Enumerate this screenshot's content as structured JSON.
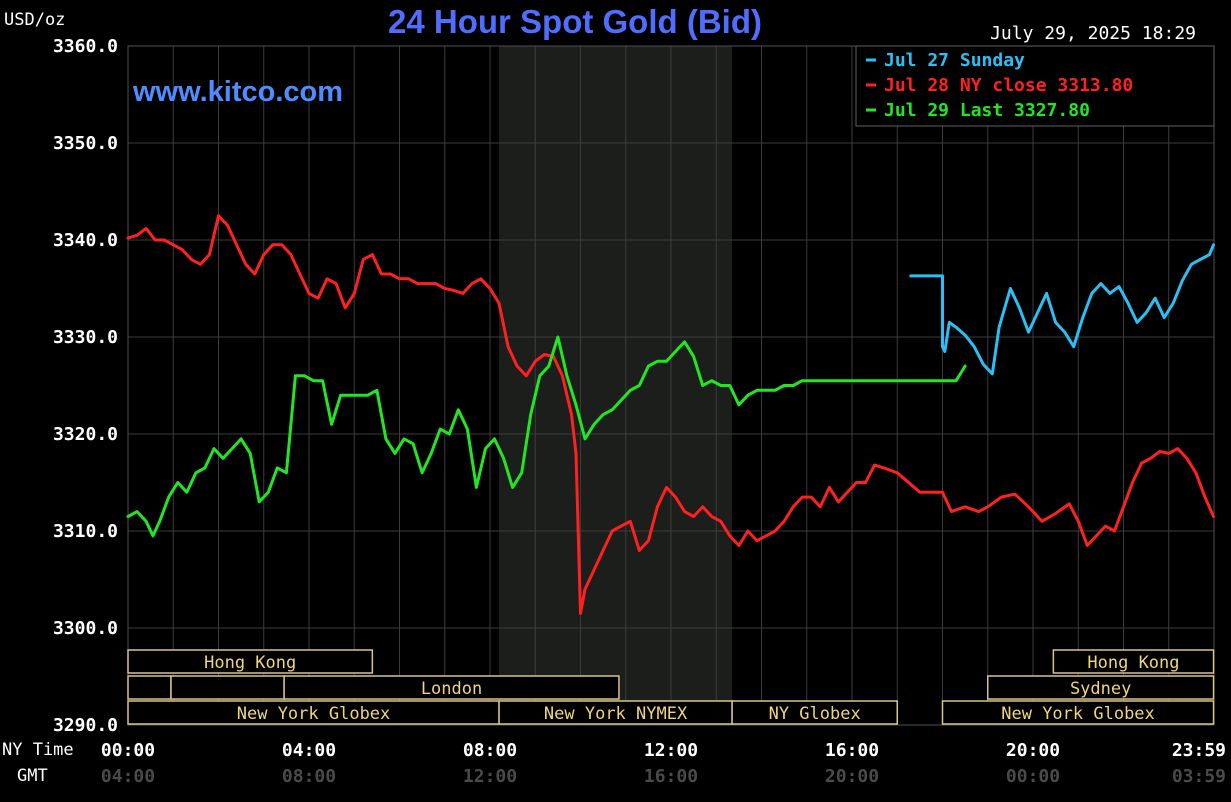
{
  "chart_data": {
    "type": "line",
    "title": "24 Hour Spot Gold (Bid)",
    "website": "www.kitco.com",
    "timestamp": "July 29, 2025 18:29",
    "unit_label": "USD/oz",
    "ylim": [
      3290,
      3360
    ],
    "yticks": [
      "3360.0",
      "3350.0",
      "3340.0",
      "3330.0",
      "3320.0",
      "3310.0",
      "3300.0",
      "3290.0"
    ],
    "xlim": [
      0,
      24
    ],
    "xticks_ny": [
      "00:00",
      "04:00",
      "08:00",
      "12:00",
      "16:00",
      "20:00",
      "23:59"
    ],
    "xticks_gmt": [
      "04:00",
      "08:00",
      "12:00",
      "16:00",
      "20:00",
      "00:00",
      "03:59"
    ],
    "xrow_labels": {
      "ny": "NY Time",
      "gmt": "GMT"
    },
    "grid": true,
    "legend": [
      {
        "label": "Jul 27 Sunday",
        "color": "#29c1f5"
      },
      {
        "label": "Jul 28 NY close 3313.80",
        "color": "#ff2020"
      },
      {
        "label": "Jul 29 Last 3327.80",
        "color": "#22e622"
      }
    ],
    "shaded_region_hours": [
      8.2,
      13.35
    ],
    "market_sessions": [
      {
        "label": "Hong Kong",
        "row": 0,
        "start": 0,
        "end": 5.4
      },
      {
        "label": "Hong Kong",
        "row": 0,
        "start": 20.45,
        "end": 23.99
      },
      {
        "label": "",
        "row": 1,
        "start": 0,
        "end": 0.95
      },
      {
        "label": "",
        "row": 1,
        "start": 0.95,
        "end": 3.45
      },
      {
        "label": "London",
        "row": 1,
        "start": 3.45,
        "end": 10.85
      },
      {
        "label": "Sydney",
        "row": 1,
        "start": 19.0,
        "end": 23.99
      },
      {
        "label": "New York Globex",
        "row": 2,
        "start": 0,
        "end": 8.2
      },
      {
        "label": "New York NYMEX",
        "row": 2,
        "start": 8.2,
        "end": 13.35
      },
      {
        "label": "NY Globex",
        "row": 2,
        "start": 13.35,
        "end": 17.0
      },
      {
        "label": "New York Globex",
        "row": 2,
        "start": 18.0,
        "end": 23.99
      }
    ],
    "series": [
      {
        "name": "Jul 27 Sunday",
        "color": "#29c1f5",
        "x": [
          17.3,
          18.0,
          18.0,
          18.05,
          18.15,
          18.3,
          18.5,
          18.7,
          18.9,
          19.1,
          19.25,
          19.5,
          19.7,
          19.9,
          20.1,
          20.3,
          20.5,
          20.7,
          20.9,
          21.1,
          21.3,
          21.5,
          21.7,
          21.9,
          22.1,
          22.3,
          22.5,
          22.7,
          22.9,
          23.1,
          23.3,
          23.5,
          23.7,
          23.9,
          23.99
        ],
        "y": [
          3336.3,
          3336.3,
          3329.0,
          3328.5,
          3331.5,
          3331.0,
          3330.2,
          3329.0,
          3327.2,
          3326.2,
          3331.0,
          3335.0,
          3333.0,
          3330.5,
          3332.5,
          3334.5,
          3331.5,
          3330.5,
          3329.0,
          3332.0,
          3334.5,
          3335.5,
          3334.5,
          3335.2,
          3333.5,
          3331.5,
          3332.5,
          3334.0,
          3332.0,
          3333.5,
          3335.8,
          3337.5,
          3338.0,
          3338.5,
          3339.5
        ]
      },
      {
        "name": "Jul 28 NY close 3313.80",
        "color": "#ff2020",
        "x": [
          0.0,
          0.2,
          0.4,
          0.6,
          0.8,
          1.0,
          1.2,
          1.4,
          1.6,
          1.8,
          2.0,
          2.2,
          2.4,
          2.6,
          2.8,
          3.0,
          3.2,
          3.4,
          3.6,
          3.8,
          4.0,
          4.2,
          4.4,
          4.6,
          4.8,
          5.0,
          5.2,
          5.4,
          5.6,
          5.8,
          6.0,
          6.2,
          6.4,
          6.6,
          6.8,
          7.0,
          7.2,
          7.4,
          7.6,
          7.8,
          8.0,
          8.2,
          8.4,
          8.6,
          8.8,
          9.0,
          9.2,
          9.4,
          9.6,
          9.8,
          9.9,
          10.0,
          10.1,
          10.3,
          10.5,
          10.7,
          10.9,
          11.1,
          11.3,
          11.5,
          11.7,
          11.9,
          12.1,
          12.3,
          12.5,
          12.7,
          12.9,
          13.1,
          13.3,
          13.5,
          13.7,
          13.9,
          14.1,
          14.3,
          14.5,
          14.7,
          14.9,
          15.1,
          15.3,
          15.5,
          15.7,
          15.9,
          16.1,
          16.3,
          16.5,
          16.7,
          17.0,
          17.5,
          18.0,
          18.2,
          18.5,
          18.8,
          19.0,
          19.3,
          19.6,
          19.9,
          20.2,
          20.5,
          20.8,
          21.0,
          21.2,
          21.4,
          21.6,
          21.8,
          22.0,
          22.2,
          22.4,
          22.6,
          22.8,
          23.0,
          23.2,
          23.4,
          23.6,
          23.8,
          23.99
        ],
        "y": [
          3340.2,
          3340.5,
          3341.2,
          3340.0,
          3340.0,
          3339.5,
          3339.0,
          3338.0,
          3337.5,
          3338.5,
          3342.5,
          3341.5,
          3339.5,
          3337.5,
          3336.5,
          3338.5,
          3339.5,
          3339.5,
          3338.5,
          3336.5,
          3334.5,
          3334.0,
          3336.0,
          3335.5,
          3333.0,
          3334.5,
          3338.0,
          3338.5,
          3336.5,
          3336.5,
          3336.0,
          3336.0,
          3335.5,
          3335.5,
          3335.5,
          3335.0,
          3334.8,
          3334.5,
          3335.5,
          3336.0,
          3335.0,
          3333.5,
          3329.0,
          3327.0,
          3326.0,
          3327.5,
          3328.2,
          3328.0,
          3326.0,
          3322.0,
          3318.0,
          3301.5,
          3304.0,
          3306.0,
          3308.0,
          3310.0,
          3310.5,
          3311.0,
          3308.0,
          3309.0,
          3312.5,
          3314.5,
          3313.5,
          3312.0,
          3311.5,
          3312.5,
          3311.5,
          3311.0,
          3309.5,
          3308.5,
          3310.0,
          3309.0,
          3309.5,
          3310.0,
          3311.0,
          3312.5,
          3313.5,
          3313.5,
          3312.5,
          3314.5,
          3313.0,
          3314.0,
          3315.0,
          3315.0,
          3316.8,
          3316.5,
          3316.0,
          3314.0,
          3314.0,
          3312.0,
          3312.5,
          3312.0,
          3312.5,
          3313.5,
          3313.8,
          3312.5,
          3311.0,
          3311.8,
          3312.8,
          3311.0,
          3308.5,
          3309.5,
          3310.5,
          3310.0,
          3312.5,
          3315.0,
          3317.0,
          3317.5,
          3318.2,
          3318.0,
          3318.5,
          3317.5,
          3316.0,
          3313.5,
          3311.5
        ]
      },
      {
        "name": "Jul 29 Last 3327.80",
        "color": "#22e622",
        "x": [
          0.0,
          0.2,
          0.4,
          0.55,
          0.7,
          0.9,
          1.1,
          1.3,
          1.5,
          1.7,
          1.9,
          2.1,
          2.3,
          2.5,
          2.7,
          2.9,
          3.1,
          3.3,
          3.5,
          3.7,
          3.9,
          4.1,
          4.3,
          4.5,
          4.7,
          4.9,
          5.1,
          5.3,
          5.5,
          5.7,
          5.9,
          6.1,
          6.3,
          6.5,
          6.7,
          6.9,
          7.1,
          7.3,
          7.5,
          7.7,
          7.9,
          8.1,
          8.3,
          8.5,
          8.7,
          8.9,
          9.1,
          9.3,
          9.5,
          9.7,
          9.9,
          10.1,
          10.3,
          10.5,
          10.7,
          10.9,
          11.1,
          11.3,
          11.5,
          11.7,
          11.9,
          12.1,
          12.3,
          12.5,
          12.7,
          12.9,
          13.1,
          13.3,
          13.5,
          13.7,
          13.9,
          14.1,
          14.3,
          14.5,
          14.7,
          14.9,
          15.1,
          15.3,
          15.5,
          15.7,
          15.9,
          16.1,
          16.3,
          16.5,
          16.7,
          16.9,
          17.1,
          17.3,
          17.5,
          17.7,
          17.9,
          18.1,
          18.3,
          18.5
        ],
        "y": [
          3311.5,
          3312.0,
          3311.0,
          3309.5,
          3311.0,
          3313.5,
          3315.0,
          3314.0,
          3316.0,
          3316.5,
          3318.5,
          3317.5,
          3318.5,
          3319.5,
          3318.0,
          3313.0,
          3314.0,
          3316.5,
          3316.0,
          3326.0,
          3326.0,
          3325.5,
          3325.5,
          3321.0,
          3324.0,
          3324.0,
          3324.0,
          3324.0,
          3324.5,
          3319.5,
          3318.0,
          3319.5,
          3319.0,
          3316.0,
          3318.0,
          3320.5,
          3320.0,
          3322.5,
          3320.5,
          3314.5,
          3318.5,
          3319.5,
          3317.5,
          3314.5,
          3316.0,
          3322.0,
          3326.0,
          3327.0,
          3330.0,
          3326.0,
          3323.0,
          3319.5,
          3321.0,
          3322.0,
          3322.5,
          3323.5,
          3324.5,
          3325.0,
          3327.0,
          3327.5,
          3327.5,
          3328.5,
          3329.5,
          3328.0,
          3325.0,
          3325.5,
          3325.0,
          3325.0,
          3323.0,
          3324.0,
          3324.5,
          3324.5,
          3324.5,
          3325.0,
          3325.0,
          3325.5,
          3325.5,
          3325.5,
          3325.5,
          3325.5,
          3325.5,
          3325.5,
          3325.5,
          3325.5,
          3325.5,
          3325.5,
          3325.5,
          3325.5,
          3325.5,
          3325.5,
          3325.5,
          3325.5,
          3325.5,
          3327.0
        ]
      }
    ]
  }
}
